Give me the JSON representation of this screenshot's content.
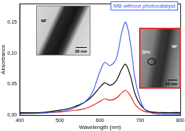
{
  "chart_data": {
    "type": "line",
    "x_label": "Wavelength (nm)",
    "y_label": "Absorbance",
    "annotations": [
      "MB without photocatalyst"
    ],
    "insets": [
      {
        "texts": [
          "NF",
          "20 nm"
        ]
      },
      {
        "texts": [
          "QDs",
          "NF",
          "10 nm"
        ]
      }
    ],
    "x": [
      400,
      450,
      500,
      530,
      560,
      580,
      600,
      612,
      625,
      640,
      655,
      664,
      675,
      690,
      710,
      730,
      760,
      800
    ],
    "series": [
      {
        "name": "MB without photocatalyst",
        "color": "#3b5ee8",
        "values": [
          0.002,
          0.003,
          0.006,
          0.01,
          0.02,
          0.035,
          0.07,
          0.085,
          0.08,
          0.09,
          0.135,
          0.15,
          0.12,
          0.05,
          0.01,
          0.003,
          0.001,
          0.001
        ]
      },
      {
        "color": "#000000",
        "values": [
          0.004,
          0.004,
          0.008,
          0.012,
          0.02,
          0.03,
          0.045,
          0.052,
          0.048,
          0.055,
          0.075,
          0.082,
          0.065,
          0.03,
          0.01,
          0.005,
          0.004,
          0.004
        ]
      },
      {
        "color": "#e02020",
        "values": [
          0.003,
          0.003,
          0.005,
          0.007,
          0.01,
          0.015,
          0.022,
          0.026,
          0.024,
          0.027,
          0.036,
          0.04,
          0.032,
          0.015,
          0.006,
          0.004,
          0.003,
          0.003
        ]
      }
    ],
    "xlim": [
      400,
      800
    ],
    "xticks": [
      400,
      500,
      600,
      700,
      800
    ],
    "ylim": [
      0,
      0.18
    ],
    "yticks": [
      {
        "value": 0,
        "label": "0,00"
      },
      {
        "value": 0.05,
        "label": "0,05"
      },
      {
        "value": 0.1,
        "label": "0,10"
      },
      {
        "value": 0.15,
        "label": "0,15"
      }
    ],
    "grid": false
  }
}
